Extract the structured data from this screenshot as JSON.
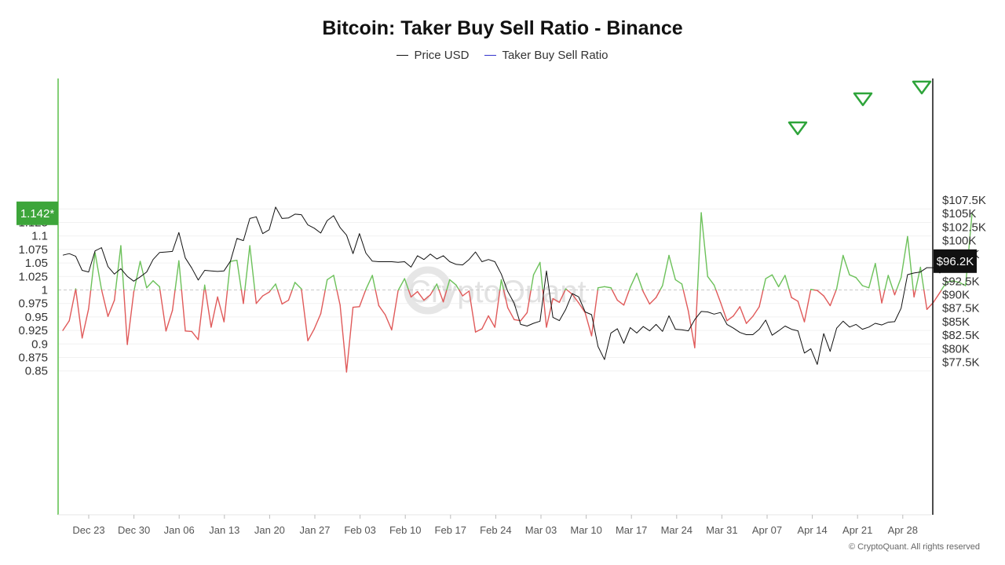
{
  "chart_data": {
    "type": "line",
    "title": "Bitcoin: Taker Buy Sell Ratio - Binance",
    "legend": [
      {
        "name": "Price USD",
        "color": "#111111"
      },
      {
        "name": "Taker Buy Sell Ratio",
        "color": "#3333cc"
      }
    ],
    "legend_position": "top-center",
    "x_ticks": [
      "Dec 23",
      "Dec 30",
      "Jan 06",
      "Jan 13",
      "Jan 20",
      "Jan 27",
      "Feb 03",
      "Feb 10",
      "Feb 17",
      "Feb 24",
      "Mar 03",
      "Mar 10",
      "Mar 17",
      "Mar 24",
      "Mar 31",
      "Apr 07",
      "Apr 14",
      "Apr 21",
      "Apr 28"
    ],
    "left_axis": {
      "ticks": [
        "0.85",
        "0.875",
        "0.9",
        "0.925",
        "0.95",
        "0.975",
        "1",
        "1.025",
        "1.05",
        "1.075",
        "1.1",
        "1.125",
        "1.15"
      ],
      "ylim": [
        0.835,
        1.155
      ]
    },
    "right_axis": {
      "ticks": [
        "$77.5K",
        "$80K",
        "$82.5K",
        "$85K",
        "$87.5K",
        "$90K",
        "$92.5K",
        "$95K",
        "$97.5K",
        "$100K",
        "$102.5K",
        "$105K",
        "$107.5K"
      ],
      "ylim": [
        74500,
        107500
      ]
    },
    "reference_line": 1,
    "last_value_labels": {
      "ratio": "1.142*",
      "price": "$96.2K"
    },
    "signal_markers": [
      "Apr 11",
      "Apr 22",
      "May 01"
    ],
    "series": [
      {
        "name": "Taker Buy Sell Ratio",
        "color_above": "#6cc15a",
        "color_below": "#e05a5a",
        "x_start": "Dec 19",
        "values": [
          0.925,
          0.943,
          1.002,
          0.911,
          0.965,
          1.069,
          1.001,
          0.951,
          0.981,
          1.082,
          0.899,
          0.996,
          1.053,
          1.004,
          1.017,
          1.006,
          0.924,
          0.962,
          1.054,
          0.924,
          0.923,
          0.908,
          1.009,
          0.931,
          0.987,
          0.941,
          1.053,
          1.055,
          0.975,
          1.082,
          0.975,
          0.989,
          0.996,
          1.011,
          0.974,
          0.981,
          1.014,
          1.002,
          0.906,
          0.928,
          0.956,
          1.019,
          1.027,
          0.972,
          0.848,
          0.968,
          0.969,
          1.001,
          1.027,
          0.971,
          0.954,
          0.926,
          0.999,
          1.021,
          0.987,
          0.997,
          0.981,
          0.991,
          1.011,
          0.978,
          1.019,
          1.009,
          0.989,
          0.998,
          0.922,
          0.928,
          0.952,
          0.931,
          1.019,
          0.967,
          0.945,
          0.943,
          0.958,
          1.028,
          1.051,
          0.931,
          0.984,
          0.977,
          1.002,
          0.992,
          0.976,
          0.958,
          0.915,
          1.004,
          1.006,
          1.004,
          0.981,
          0.972,
          1.005,
          1.031,
          0.997,
          0.974,
          0.986,
          1.008,
          1.064,
          1.019,
          1.011,
          0.961,
          0.893,
          1.143,
          1.025,
          1.009,
          0.977,
          0.943,
          0.952,
          0.969,
          0.938,
          0.951,
          0.969,
          1.021,
          1.028,
          1.006,
          1.027,
          0.986,
          0.979,
          0.941,
          1.001,
          0.999,
          0.989,
          0.971,
          1.002,
          1.064,
          1.028,
          1.023,
          1.008,
          1.004,
          1.049,
          0.976,
          1.027,
          0.991,
          1.023,
          1.099,
          0.987,
          1.042,
          0.964,
          0.977,
          0.995,
          1.014,
          1.017,
          1.014,
          1.008,
          1.142
        ]
      },
      {
        "name": "Price USD",
        "color": "#111111",
        "x_start": "Dec 19",
        "values": [
          97300,
          97600,
          97100,
          94500,
          94200,
          98100,
          98700,
          95200,
          93800,
          94800,
          93400,
          92500,
          93300,
          94200,
          96500,
          97800,
          97900,
          98000,
          101500,
          96800,
          94900,
          92700,
          94500,
          94400,
          94300,
          94400,
          96200,
          100400,
          100000,
          104100,
          104400,
          101300,
          102000,
          106200,
          104100,
          104200,
          104900,
          104800,
          102900,
          102300,
          101400,
          103700,
          104600,
          102400,
          101000,
          97600,
          101300,
          97700,
          96200,
          96100,
          96100,
          96100,
          96000,
          96100,
          95100,
          97200,
          96500,
          97500,
          96600,
          97200,
          96100,
          95600,
          95500,
          96500,
          97900,
          96100,
          96500,
          96100,
          93800,
          90600,
          88400,
          84500,
          84200,
          84700,
          85100,
          94400,
          85800,
          85200,
          87300,
          90200,
          89600,
          86800,
          86300,
          80400,
          78000,
          82900,
          83700,
          81000,
          83900,
          82900,
          84100,
          83300,
          84500,
          83200,
          86100,
          83600,
          83500,
          83300,
          85400,
          86900,
          86800,
          86400,
          86700,
          84500,
          83800,
          83000,
          82600,
          82600,
          83600,
          85300,
          82500,
          83300,
          84200,
          83600,
          83300,
          79200,
          80000,
          77100,
          82800,
          79500,
          83800,
          85100,
          84000,
          84500,
          83600,
          84000,
          84700,
          84400,
          84900,
          85000,
          87500,
          93700,
          94000,
          94200,
          95000,
          95000,
          94000,
          95400,
          94600,
          94500,
          96200
        ]
      }
    ]
  },
  "footer": {
    "copyright": "© CryptoQuant. All rights reserved"
  }
}
